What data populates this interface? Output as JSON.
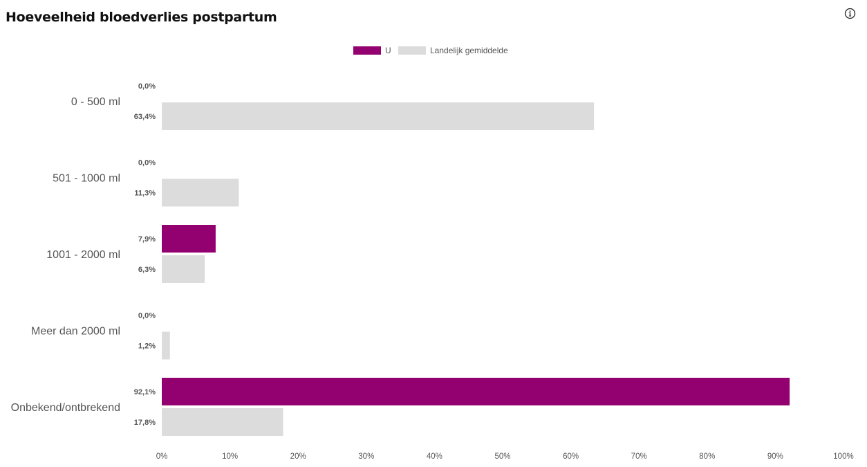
{
  "header": {
    "title": "Hoeveelheid bloedverlies postpartum",
    "info_icon": "info-icon"
  },
  "colors": {
    "u": "#93006f",
    "landelijk": "#dcdcdc",
    "text": "#555555"
  },
  "chart_data": {
    "type": "bar",
    "orientation": "horizontal",
    "title": "Hoeveelheid bloedverlies postpartum",
    "categories": [
      "0 - 500 ml",
      "501 - 1000 ml",
      "1001 - 2000 ml",
      "Meer dan 2000 ml",
      "Onbekend/ontbrekend"
    ],
    "series": [
      {
        "name": "U",
        "values": [
          0.0,
          0.0,
          7.9,
          0.0,
          92.1
        ],
        "labels": [
          "0,0%",
          "0,0%",
          "7,9%",
          "0,0%",
          "92,1%"
        ]
      },
      {
        "name": "Landelijk gemiddelde",
        "values": [
          63.4,
          11.3,
          6.3,
          1.2,
          17.8
        ],
        "labels": [
          "63,4%",
          "11,3%",
          "6,3%",
          "1,2%",
          "17,8%"
        ]
      }
    ],
    "xlim": [
      0,
      100
    ],
    "xticks": [
      0,
      10,
      20,
      30,
      40,
      50,
      60,
      70,
      80,
      90,
      100
    ],
    "xtick_labels": [
      "0%",
      "10%",
      "20%",
      "30%",
      "40%",
      "50%",
      "60%",
      "70%",
      "80%",
      "90%",
      "100%"
    ],
    "grid": false,
    "legend_position": "top-center",
    "xlabel": "",
    "ylabel": ""
  }
}
